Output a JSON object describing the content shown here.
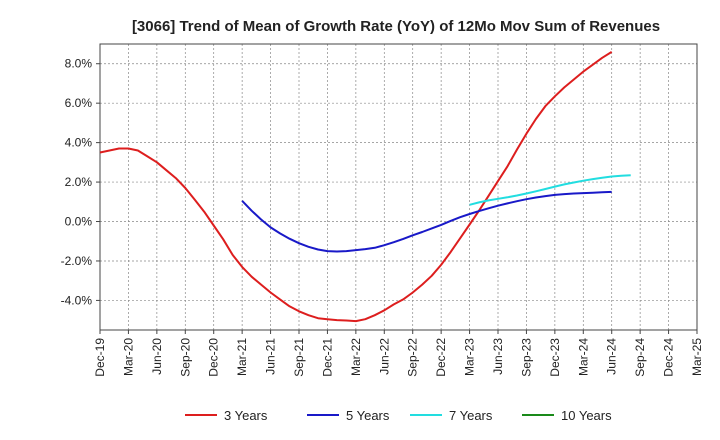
{
  "chart_data": {
    "type": "line",
    "title": "[3066]  Trend of Mean of Growth Rate (YoY) of 12Mo Mov Sum of Revenues",
    "xlabel": "",
    "ylabel": "",
    "ylim": [
      -5.5,
      9.0
    ],
    "yticks": [
      -4.0,
      -2.0,
      0.0,
      2.0,
      4.0,
      6.0,
      8.0
    ],
    "ytick_labels": [
      "-4.0%",
      "-2.0%",
      "0.0%",
      "2.0%",
      "4.0%",
      "6.0%",
      "8.0%"
    ],
    "x_categories": [
      "Dec-19",
      "Mar-20",
      "Jun-20",
      "Sep-20",
      "Dec-20",
      "Mar-21",
      "Jun-21",
      "Sep-21",
      "Dec-21",
      "Mar-22",
      "Jun-22",
      "Sep-22",
      "Dec-22",
      "Mar-23",
      "Jun-23",
      "Sep-23",
      "Dec-23",
      "Mar-24",
      "Jun-24",
      "Sep-24",
      "Dec-24",
      "Mar-25"
    ],
    "grid": true,
    "legend_position": "bottom",
    "series": [
      {
        "name": "3 Years",
        "color": "#dd1e1e",
        "start_index": 0,
        "values": [
          3.5,
          3.6,
          3.7,
          3.7,
          3.6,
          3.3,
          3.0,
          2.6,
          2.2,
          1.7,
          1.1,
          0.5,
          -0.2,
          -0.9,
          -1.7,
          -2.3,
          -2.8,
          -3.2,
          -3.6,
          -3.95,
          -4.3,
          -4.55,
          -4.75,
          -4.9,
          -4.95,
          -5.0,
          -5.02,
          -5.05,
          -4.95,
          -4.75,
          -4.5,
          -4.2,
          -3.95,
          -3.6,
          -3.2,
          -2.75,
          -2.2,
          -1.55,
          -0.85,
          -0.15,
          0.55,
          1.3,
          2.05,
          2.8,
          3.65,
          4.45,
          5.2,
          5.85,
          6.35,
          6.8,
          7.2,
          7.6,
          7.95,
          8.3,
          8.6
        ]
      },
      {
        "name": "5 Years",
        "color": "#1919c8",
        "start_index": 15,
        "values": [
          1.05,
          0.55,
          0.1,
          -0.3,
          -0.6,
          -0.87,
          -1.1,
          -1.28,
          -1.42,
          -1.5,
          -1.52,
          -1.5,
          -1.45,
          -1.4,
          -1.33,
          -1.2,
          -1.05,
          -0.88,
          -0.7,
          -0.53,
          -0.35,
          -0.17,
          0.03,
          0.22,
          0.38,
          0.53,
          0.67,
          0.8,
          0.92,
          1.03,
          1.13,
          1.22,
          1.29,
          1.35,
          1.39,
          1.42,
          1.44,
          1.46,
          1.48,
          1.5
        ]
      },
      {
        "name": "7 Years",
        "color": "#22dde0",
        "start_index": 39,
        "values": [
          0.85,
          0.97,
          1.07,
          1.15,
          1.23,
          1.32,
          1.42,
          1.53,
          1.65,
          1.77,
          1.88,
          1.98,
          2.07,
          2.15,
          2.22,
          2.28,
          2.32,
          2.35
        ]
      },
      {
        "name": "10 Years",
        "color": "#1a8a1a",
        "start_index": 0,
        "values": []
      }
    ]
  }
}
